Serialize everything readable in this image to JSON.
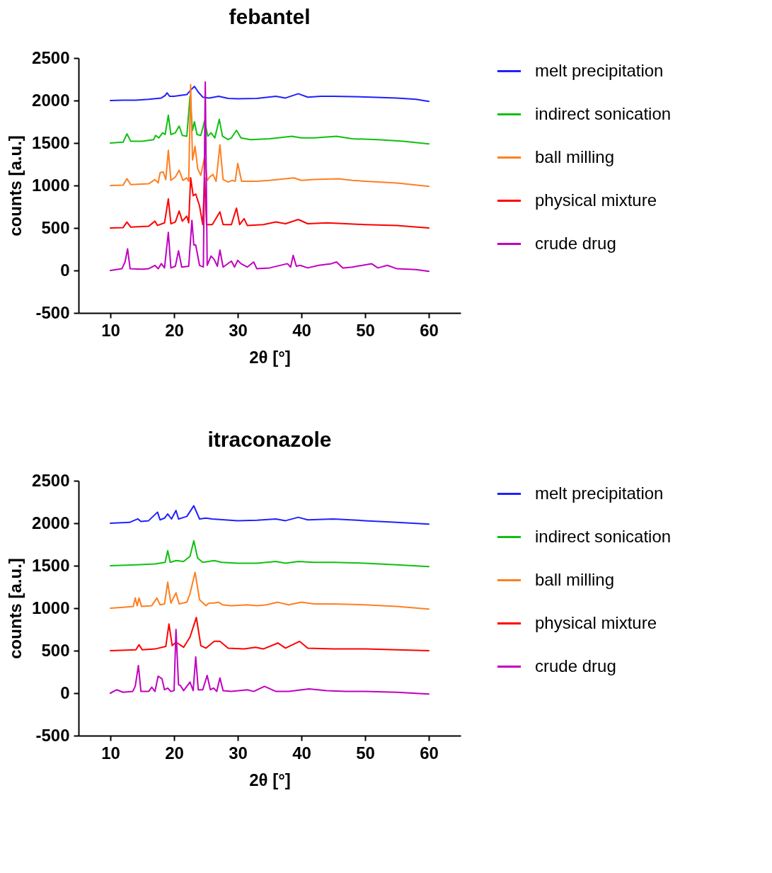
{
  "chart_data": [
    {
      "type": "line",
      "title": "febantel",
      "xlabel": "2θ [°]",
      "ylabel": "counts [a.u.]",
      "xlim": [
        5,
        65
      ],
      "xticks": [
        10,
        20,
        30,
        40,
        50,
        60
      ],
      "ylim": [
        -500,
        2500
      ],
      "yticks": [
        {
          "value": -500,
          "label": "-500"
        },
        0,
        500,
        1000,
        1500,
        2000,
        2500
      ],
      "grid": false,
      "legend": "right",
      "marker": "none",
      "line_style": "solid",
      "series": [
        {
          "name": "melt precipitation",
          "color": "#2020ff",
          "x": [
            10,
            12,
            14,
            16,
            18,
            18.6,
            18.9,
            19.3,
            20,
            21,
            22,
            22.7,
            23.2,
            23.8,
            24.5,
            25.5,
            27,
            28.5,
            30,
            33,
            36,
            37.5,
            39.5,
            41,
            43,
            45,
            48,
            51,
            55,
            58,
            60
          ],
          "values": [
            2000,
            2005,
            2005,
            2015,
            2030,
            2060,
            2090,
            2050,
            2050,
            2060,
            2070,
            2130,
            2167,
            2100,
            2040,
            2030,
            2050,
            2025,
            2020,
            2025,
            2050,
            2030,
            2080,
            2040,
            2050,
            2050,
            2045,
            2040,
            2030,
            2015,
            1990
          ]
        },
        {
          "name": "indirect sonication",
          "color": "#10c010",
          "x": [
            10,
            12,
            12.6,
            13.2,
            15,
            16.8,
            17.1,
            17.6,
            18.2,
            18.6,
            19.1,
            19.5,
            20.2,
            20.8,
            21.3,
            22,
            22.5,
            22.9,
            23.2,
            23.6,
            24.2,
            24.8,
            25.3,
            25.8,
            26.4,
            27.1,
            27.6,
            28.5,
            29,
            29.8,
            30.5,
            32,
            35,
            38.5,
            40,
            42,
            45.5,
            48,
            52,
            56,
            60
          ],
          "values": [
            1500,
            1510,
            1608,
            1520,
            1520,
            1540,
            1590,
            1560,
            1620,
            1600,
            1827,
            1600,
            1620,
            1700,
            1590,
            1580,
            2048,
            1650,
            1750,
            1600,
            1590,
            1760,
            1580,
            1620,
            1560,
            1780,
            1580,
            1540,
            1560,
            1650,
            1560,
            1540,
            1550,
            1580,
            1560,
            1560,
            1580,
            1550,
            1540,
            1520,
            1490
          ]
        },
        {
          "name": "ball milling",
          "color": "#ff7f20",
          "x": [
            10,
            12,
            12.6,
            13.2,
            16,
            17,
            17.5,
            17.8,
            18.3,
            18.7,
            19.1,
            19.5,
            20.2,
            20.8,
            21.4,
            22,
            22.3,
            22.6,
            22.9,
            23.3,
            23.7,
            24.2,
            24.8,
            25.2,
            25.6,
            26.1,
            26.6,
            27.2,
            27.7,
            28.5,
            29.1,
            29.6,
            30,
            30.6,
            33,
            35,
            38.8,
            40,
            42,
            45.8,
            48,
            50,
            55,
            60
          ],
          "values": [
            1000,
            1005,
            1080,
            1010,
            1020,
            1070,
            1030,
            1150,
            1160,
            1070,
            1415,
            1060,
            1100,
            1180,
            1060,
            1090,
            1050,
            2187,
            1300,
            1460,
            1200,
            1120,
            1337,
            1060,
            1100,
            1130,
            1050,
            1479,
            1070,
            1040,
            1060,
            1050,
            1260,
            1050,
            1050,
            1060,
            1090,
            1060,
            1070,
            1080,
            1060,
            1050,
            1030,
            990
          ]
        },
        {
          "name": "physical mixture",
          "color": "#ff0000",
          "x": [
            10,
            12,
            12.6,
            13.2,
            16,
            17,
            17.4,
            18.5,
            19.1,
            19.5,
            20.2,
            20.8,
            21.3,
            22,
            22.3,
            22.6,
            23,
            23.4,
            24,
            24.5,
            24.8,
            25.1,
            26,
            27.2,
            27.7,
            29,
            29.8,
            30.3,
            31,
            31.5,
            34,
            36,
            37.5,
            39.5,
            41,
            44,
            47,
            50,
            55,
            60
          ],
          "values": [
            500,
            505,
            570,
            510,
            520,
            580,
            530,
            560,
            843,
            550,
            570,
            700,
            580,
            640,
            560,
            1092,
            880,
            900,
            760,
            540,
            1090,
            540,
            540,
            690,
            540,
            540,
            734,
            540,
            610,
            530,
            540,
            570,
            550,
            600,
            550,
            560,
            550,
            540,
            530,
            500
          ]
        },
        {
          "name": "crude drug",
          "color": "#c000c0",
          "x": [
            10,
            11.8,
            12.3,
            12.7,
            13.1,
            15,
            16,
            17,
            17.5,
            18,
            18.5,
            19.1,
            19.5,
            20.2,
            20.7,
            21.2,
            22.3,
            22.8,
            23.1,
            23.4,
            24,
            24.6,
            24.9,
            25.2,
            25.8,
            26.3,
            26.8,
            27.2,
            27.7,
            29,
            29.5,
            30,
            30.5,
            31.5,
            32.5,
            33,
            35,
            37.8,
            38.3,
            38.7,
            39.2,
            39.8,
            41,
            42.7,
            44.7,
            45.5,
            46.5,
            48,
            51,
            52,
            53.5,
            55,
            58,
            60
          ],
          "values": [
            0,
            20,
            100,
            255,
            20,
            15,
            20,
            60,
            20,
            80,
            30,
            448,
            30,
            50,
            232,
            40,
            50,
            590,
            300,
            300,
            60,
            40,
            2218,
            60,
            170,
            130,
            50,
            240,
            40,
            110,
            40,
            120,
            80,
            40,
            100,
            20,
            30,
            80,
            40,
            178,
            50,
            60,
            30,
            60,
            80,
            100,
            30,
            40,
            80,
            30,
            60,
            20,
            10,
            -10
          ]
        }
      ]
    },
    {
      "type": "line",
      "title": "itraconazole",
      "xlabel": "2θ [°]",
      "ylabel": "counts [a.u.]",
      "xlim": [
        5,
        65
      ],
      "xticks": [
        10,
        20,
        30,
        40,
        50,
        60
      ],
      "ylim": [
        -500,
        2500
      ],
      "yticks": [
        {
          "value": -500,
          "label": "-500"
        },
        0,
        500,
        1000,
        1500,
        2000,
        2500
      ],
      "grid": false,
      "legend": "right",
      "marker": "none",
      "line_style": "solid",
      "series": [
        {
          "name": "melt precipitation",
          "color": "#2020ff",
          "x": [
            10,
            13,
            14.3,
            14.8,
            16,
            17.4,
            17.8,
            18.5,
            19,
            19.6,
            20.3,
            20.7,
            22,
            23.1,
            24,
            25,
            26,
            28,
            30,
            33,
            36,
            37.5,
            39.5,
            41,
            45,
            50,
            55,
            60
          ],
          "values": [
            2000,
            2010,
            2051,
            2020,
            2030,
            2130,
            2040,
            2060,
            2110,
            2050,
            2150,
            2050,
            2080,
            2205,
            2050,
            2060,
            2050,
            2040,
            2030,
            2035,
            2050,
            2030,
            2070,
            2040,
            2050,
            2030,
            2010,
            1990
          ]
        },
        {
          "name": "indirect sonication",
          "color": "#10c010",
          "x": [
            10,
            14,
            17,
            18.6,
            19,
            19.4,
            20.3,
            21.5,
            22.5,
            23.1,
            23.7,
            24.5,
            26.3,
            27.5,
            30,
            33,
            36,
            37.5,
            39.5,
            42,
            45,
            50,
            55,
            60
          ],
          "values": [
            1500,
            1510,
            1520,
            1540,
            1677,
            1540,
            1560,
            1550,
            1610,
            1793,
            1590,
            1540,
            1560,
            1540,
            1530,
            1530,
            1550,
            1530,
            1550,
            1540,
            1540,
            1530,
            1510,
            1490
          ]
        },
        {
          "name": "ball milling",
          "color": "#ff7f20",
          "x": [
            10,
            12,
            13.6,
            13.9,
            14.2,
            14.5,
            14.9,
            16.5,
            17.3,
            17.8,
            18.5,
            19,
            19.5,
            20.3,
            20.8,
            22,
            22.5,
            23.3,
            24,
            25,
            25.5,
            26.3,
            27,
            27.6,
            29,
            31.5,
            33,
            34.5,
            36.3,
            38,
            40,
            42,
            45,
            50,
            55,
            60
          ],
          "values": [
            1000,
            1010,
            1020,
            1120,
            1030,
            1120,
            1020,
            1030,
            1120,
            1040,
            1050,
            1306,
            1060,
            1180,
            1050,
            1070,
            1170,
            1422,
            1100,
            1030,
            1060,
            1060,
            1070,
            1040,
            1030,
            1040,
            1030,
            1040,
            1070,
            1040,
            1070,
            1050,
            1050,
            1040,
            1020,
            990
          ]
        },
        {
          "name": "physical mixture",
          "color": "#ff0000",
          "x": [
            10,
            14,
            14.5,
            15,
            17,
            18.7,
            19.2,
            19.7,
            20.3,
            21.5,
            22.5,
            23.5,
            24.2,
            25,
            26.3,
            27.2,
            28.5,
            31,
            32.8,
            34,
            36.3,
            37.5,
            39.7,
            41,
            45,
            50,
            55,
            60
          ],
          "values": [
            500,
            510,
            570,
            510,
            520,
            550,
            814,
            560,
            600,
            540,
            660,
            891,
            560,
            530,
            610,
            610,
            530,
            520,
            540,
            520,
            590,
            530,
            610,
            530,
            520,
            520,
            510,
            500
          ]
        },
        {
          "name": "crude drug",
          "color": "#c000c0",
          "x": [
            10,
            11,
            12,
            13.5,
            13.9,
            14.4,
            14.8,
            16,
            16.5,
            17,
            17.5,
            18.1,
            18.5,
            19,
            19.5,
            20,
            20.3,
            20.7,
            21,
            21.5,
            22.5,
            23,
            23.4,
            23.8,
            24.5,
            25.2,
            25.7,
            26.2,
            26.7,
            27.2,
            27.7,
            29,
            31.5,
            32.5,
            34.2,
            36,
            38,
            41.2,
            44,
            47,
            50,
            55,
            60
          ],
          "values": [
            0,
            40,
            10,
            20,
            80,
            325,
            20,
            20,
            70,
            20,
            200,
            170,
            40,
            60,
            20,
            30,
            750,
            100,
            90,
            30,
            130,
            30,
            427,
            40,
            40,
            209,
            40,
            60,
            20,
            180,
            30,
            20,
            40,
            20,
            80,
            20,
            20,
            50,
            30,
            20,
            20,
            10,
            -10
          ]
        }
      ]
    }
  ]
}
